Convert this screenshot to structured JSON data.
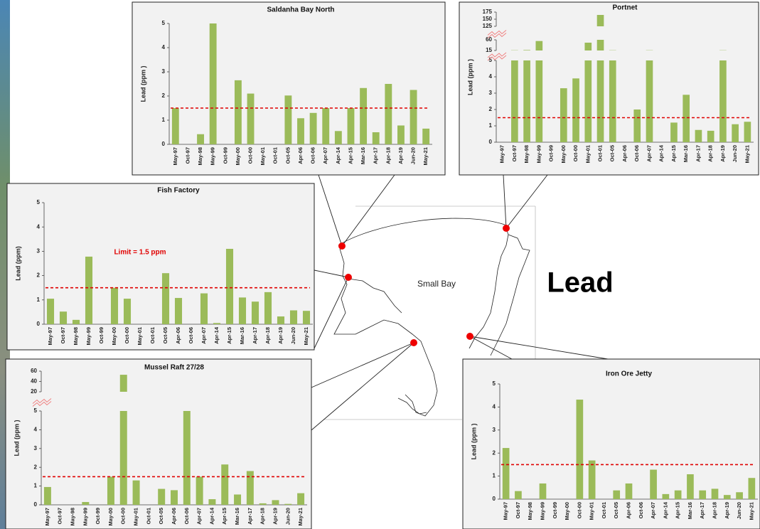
{
  "map": {
    "place_label": "Small Bay",
    "title": "Lead"
  },
  "chart_data": [
    {
      "type": "bar",
      "title": "Saldanha  Bay North",
      "ylabel": "Lead (ppm )",
      "color": "#9bbb59",
      "limit": 1.5,
      "limit_color": "#e00000",
      "categories": [
        "May-97",
        "Oct-97",
        "May-98",
        "May-99",
        "Oct-99",
        "May-00",
        "Oct-00",
        "May-01",
        "Oct-01",
        "Oct-05",
        "Apr-06",
        "Oct-06",
        "Apr-07",
        "Apr-14",
        "Apr-15",
        "Mar-16",
        "Apr-17",
        "Apr-18",
        "Apr-19",
        "Jun-20",
        "May-21"
      ],
      "values": [
        1.5,
        null,
        0.42,
        5,
        null,
        2.65,
        2.1,
        null,
        null,
        2.02,
        1.08,
        1.3,
        1.5,
        0.55,
        1.5,
        2.33,
        0.5,
        2.5,
        0.78,
        2.25,
        0.65
      ],
      "ylim": [
        0,
        5
      ],
      "yticks": [
        0,
        1,
        2,
        3,
        4,
        5
      ]
    },
    {
      "type": "bar",
      "title": "Portnet",
      "ylabel": "Lead (ppm )",
      "color": "#9bbb59",
      "limit": 1.5,
      "limit_color": "#e00000",
      "categories": [
        "May-97",
        "Oct-97",
        "May-98",
        "May-99",
        "Oct-99",
        "May-00",
        "Oct-00",
        "May-01",
        "Oct-01",
        "Oct-05",
        "Apr-06",
        "Oct-06",
        "Apr-07",
        "Apr-14",
        "Apr-15",
        "Mar-16",
        "Apr-17",
        "Apr-18",
        "Apr-19",
        "Jun-20",
        "May-21"
      ],
      "values": [
        null,
        16,
        17,
        55,
        null,
        3.3,
        3.9,
        48,
        165,
        16,
        null,
        2.0,
        16,
        null,
        1.2,
        2.9,
        0.75,
        0.7,
        16,
        1.1,
        1.25
      ],
      "y_segments": [
        {
          "ylim": [
            0,
            5
          ],
          "yticks": [
            0,
            1,
            2,
            3,
            4,
            5
          ]
        },
        {
          "ylim": [
            15,
            60
          ],
          "yticks": [
            15,
            60
          ]
        },
        {
          "ylim": [
            125,
            175
          ],
          "yticks": [
            125,
            150,
            175
          ]
        }
      ]
    },
    {
      "type": "bar",
      "title": "Fish Factory",
      "ylabel": "Lead (ppm)",
      "color": "#9bbb59",
      "limit": 1.5,
      "limit_color": "#e00000",
      "annotation": "Limit = 1.5 ppm",
      "categories": [
        "May-97",
        "Oct-97",
        "May-98",
        "May-99",
        "Oct-99",
        "May-00",
        "Oct-00",
        "May-01",
        "Oct-01",
        "Oct-05",
        "Apr-06",
        "Oct-06",
        "Apr-07",
        "Apr-14",
        "Apr-15",
        "Mar-16",
        "Apr-17",
        "Apr-18",
        "Apr-19",
        "Jun-20",
        "May-21"
      ],
      "values": [
        1.05,
        0.52,
        0.18,
        2.78,
        null,
        1.5,
        1.05,
        null,
        null,
        2.1,
        1.08,
        null,
        1.27,
        0.05,
        3.1,
        1.1,
        0.93,
        1.32,
        0.32,
        0.57,
        0.55
      ],
      "ylim": [
        0,
        5
      ],
      "yticks": [
        0,
        1,
        2,
        3,
        4,
        5
      ]
    },
    {
      "type": "bar",
      "title": "Mussel Raft 27/28",
      "ylabel": "Lead (ppm )",
      "color": "#9bbb59",
      "limit": 1.5,
      "limit_color": "#e00000",
      "categories": [
        "May-97",
        "Oct-97",
        "May-98",
        "May-99",
        "Oct-99",
        "May-00",
        "Oct-00",
        "May-01",
        "Oct-01",
        "Oct-05",
        "Apr-06",
        "Oct-06",
        "Apr-07",
        "Apr-14",
        "Apr-15",
        "Mar-16",
        "Apr-17",
        "Apr-18",
        "Apr-19",
        "Jun-20",
        "May-21"
      ],
      "values": [
        0.95,
        null,
        null,
        0.15,
        null,
        1.5,
        53,
        1.3,
        null,
        0.85,
        0.78,
        5,
        1.5,
        0.3,
        2.15,
        0.55,
        1.8,
        0.08,
        0.25,
        0.05,
        0.62
      ],
      "y_segments": [
        {
          "ylim": [
            0,
            5
          ],
          "yticks": [
            0,
            1,
            2,
            3,
            4,
            5
          ]
        },
        {
          "ylim": [
            20,
            60
          ],
          "yticks": [
            20,
            40,
            60
          ]
        }
      ]
    },
    {
      "type": "bar",
      "title": "Iron Ore Jetty",
      "ylabel": "Lead (ppm )",
      "color": "#9bbb59",
      "limit": 1.5,
      "limit_color": "#e00000",
      "categories": [
        "May-97",
        "Oct-97",
        "May-98",
        "May-99",
        "Oct-99",
        "May-00",
        "Oct-00",
        "May-01",
        "Oct-01",
        "Oct-05",
        "Apr-06",
        "Oct-06",
        "Apr-07",
        "Apr-14",
        "Apr-15",
        "Mar-16",
        "Apr-17",
        "Apr-18",
        "Apr-19",
        "Jun-20",
        "May-21"
      ],
      "values": [
        2.22,
        0.35,
        null,
        0.68,
        null,
        null,
        4.32,
        1.68,
        null,
        0.38,
        0.68,
        null,
        1.28,
        0.22,
        0.38,
        1.08,
        0.38,
        0.45,
        0.18,
        0.3,
        0.92
      ],
      "ylim": [
        0,
        5
      ],
      "yticks": [
        0,
        1,
        2,
        3,
        4,
        5
      ]
    }
  ]
}
